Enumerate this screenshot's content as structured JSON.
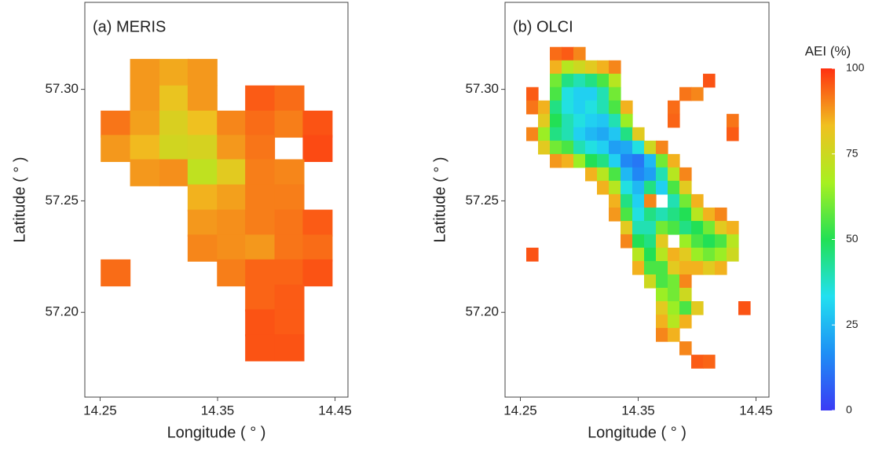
{
  "chart_data": [
    {
      "type": "heatmap",
      "title": "(a) MERIS",
      "x_label": "Longitude ( ° )",
      "y_label": "Latitude ( ° )",
      "xlim": [
        14.237,
        14.461
      ],
      "ylim": [
        57.162,
        57.339
      ],
      "xticks": [
        14.25,
        14.35,
        14.45
      ],
      "yticks": [
        {
          "value": 57.2,
          "label": "57.20"
        },
        57.25,
        {
          "value": 57.3,
          "label": "57.30"
        }
      ],
      "x": [
        14.263,
        14.288,
        14.313,
        14.337,
        14.362,
        14.386,
        14.411,
        14.435
      ],
      "y": [
        57.3077,
        57.2958,
        57.2845,
        57.2736,
        57.2627,
        57.2514,
        57.2401,
        57.2289,
        57.2178,
        57.2065,
        57.1954,
        57.1842
      ],
      "z": [
        [
          null,
          88,
          86,
          88,
          null,
          null,
          null,
          null
        ],
        [
          null,
          88,
          82,
          88,
          null,
          95,
          93,
          null
        ],
        [
          92,
          87,
          78,
          83,
          90,
          93,
          91,
          96
        ],
        [
          88,
          84,
          76,
          77,
          88,
          92,
          null,
          97
        ],
        [
          null,
          88,
          89,
          72,
          80,
          91,
          90,
          null
        ],
        [
          null,
          null,
          null,
          85,
          87,
          91,
          91,
          null
        ],
        [
          null,
          null,
          null,
          88,
          89,
          91,
          92,
          95
        ],
        [
          null,
          null,
          null,
          90,
          89,
          88,
          92,
          93
        ],
        [
          93,
          null,
          null,
          null,
          91,
          94,
          94,
          96
        ],
        [
          null,
          null,
          null,
          null,
          null,
          94,
          95,
          null
        ],
        [
          null,
          null,
          null,
          null,
          null,
          96,
          95,
          null
        ],
        [
          null,
          null,
          null,
          null,
          null,
          96,
          96,
          null
        ]
      ]
    },
    {
      "type": "heatmap",
      "title": "(b) OLCI",
      "x_label": "Longitude ( ° )",
      "y_label": "Latitude ( ° )",
      "xlim": [
        14.237,
        14.461
      ],
      "ylim": [
        57.162,
        57.339
      ],
      "xticks": [
        14.25,
        14.35,
        14.45
      ],
      "yticks": [
        {
          "value": 57.2,
          "label": "57.20"
        },
        57.25,
        {
          "value": 57.3,
          "label": "57.30"
        }
      ],
      "x": [
        14.26,
        14.27,
        14.28,
        14.29,
        14.3,
        14.31,
        14.32,
        14.33,
        14.34,
        14.35,
        14.36,
        14.37,
        14.38,
        14.39,
        14.4,
        14.41,
        14.42,
        14.43,
        14.44
      ],
      "y": [
        57.316,
        57.31,
        57.304,
        57.298,
        57.292,
        57.286,
        57.28,
        57.274,
        57.268,
        57.262,
        57.256,
        57.25,
        57.244,
        57.238,
        57.232,
        57.226,
        57.22,
        57.214,
        57.208,
        57.202,
        57.196,
        57.19,
        57.184,
        57.178
      ],
      "z": [
        [
          null,
          null,
          93,
          95,
          90,
          null,
          null,
          null,
          null,
          null,
          null,
          null,
          null,
          null,
          null,
          null,
          null,
          null,
          null
        ],
        [
          null,
          null,
          85,
          70,
          75,
          80,
          85,
          90,
          null,
          null,
          null,
          null,
          null,
          null,
          null,
          null,
          null,
          null,
          null
        ],
        [
          null,
          null,
          60,
          45,
          40,
          45,
          55,
          70,
          null,
          null,
          null,
          null,
          null,
          null,
          null,
          96,
          null,
          null,
          null
        ],
        [
          95,
          null,
          55,
          35,
          30,
          30,
          40,
          60,
          null,
          null,
          null,
          null,
          null,
          92,
          90,
          null,
          null,
          null,
          null
        ],
        [
          92,
          85,
          45,
          35,
          30,
          35,
          40,
          55,
          85,
          null,
          null,
          null,
          93,
          null,
          null,
          null,
          null,
          null,
          null
        ],
        [
          null,
          80,
          50,
          40,
          35,
          30,
          28,
          40,
          65,
          null,
          null,
          null,
          94,
          null,
          null,
          null,
          null,
          92,
          null
        ],
        [
          90,
          65,
          45,
          40,
          30,
          25,
          22,
          28,
          45,
          80,
          null,
          null,
          null,
          null,
          null,
          null,
          null,
          95,
          null
        ],
        [
          null,
          80,
          60,
          55,
          40,
          35,
          30,
          20,
          22,
          35,
          75,
          90,
          null,
          null,
          null,
          null,
          null,
          null,
          null
        ],
        [
          null,
          null,
          88,
          85,
          65,
          50,
          45,
          30,
          15,
          12,
          25,
          60,
          85,
          null,
          null,
          null,
          null,
          null,
          null
        ],
        [
          null,
          null,
          null,
          null,
          null,
          85,
          70,
          55,
          25,
          15,
          20,
          40,
          70,
          90,
          null,
          null,
          null,
          null,
          null
        ],
        [
          null,
          null,
          null,
          null,
          null,
          null,
          85,
          70,
          35,
          25,
          45,
          30,
          55,
          80,
          null,
          null,
          null,
          null,
          null
        ],
        [
          null,
          null,
          null,
          null,
          null,
          null,
          null,
          85,
          45,
          30,
          90,
          null,
          40,
          60,
          85,
          null,
          null,
          null,
          null
        ],
        [
          null,
          null,
          null,
          null,
          null,
          null,
          null,
          88,
          55,
          35,
          45,
          40,
          45,
          50,
          70,
          85,
          90,
          null,
          null
        ],
        [
          null,
          null,
          null,
          null,
          null,
          null,
          null,
          null,
          80,
          40,
          40,
          60,
          55,
          45,
          50,
          60,
          80,
          85,
          null
        ],
        [
          null,
          null,
          null,
          null,
          null,
          null,
          null,
          null,
          90,
          50,
          45,
          80,
          null,
          65,
          55,
          50,
          55,
          70,
          null
        ],
        [
          96,
          null,
          null,
          null,
          null,
          null,
          null,
          null,
          null,
          70,
          50,
          70,
          85,
          80,
          65,
          60,
          65,
          75,
          null
        ],
        [
          null,
          null,
          null,
          null,
          null,
          null,
          null,
          null,
          null,
          85,
          55,
          55,
          80,
          85,
          85,
          80,
          85,
          null,
          null
        ],
        [
          null,
          null,
          null,
          null,
          null,
          null,
          null,
          null,
          null,
          null,
          75,
          55,
          60,
          90,
          null,
          null,
          null,
          null,
          null
        ],
        [
          null,
          null,
          null,
          null,
          null,
          null,
          null,
          null,
          null,
          null,
          null,
          65,
          60,
          75,
          null,
          null,
          null,
          null,
          null
        ],
        [
          null,
          null,
          null,
          null,
          null,
          null,
          null,
          null,
          null,
          null,
          null,
          80,
          65,
          55,
          80,
          null,
          null,
          null,
          96
        ],
        [
          null,
          null,
          null,
          null,
          null,
          null,
          null,
          null,
          null,
          null,
          null,
          85,
          70,
          85,
          null,
          null,
          null,
          null,
          null
        ],
        [
          null,
          null,
          null,
          null,
          null,
          null,
          null,
          null,
          null,
          null,
          null,
          90,
          85,
          null,
          null,
          null,
          null,
          null,
          null
        ],
        [
          null,
          null,
          null,
          null,
          null,
          null,
          null,
          null,
          null,
          null,
          null,
          null,
          null,
          90,
          null,
          null,
          null,
          null,
          null
        ],
        [
          null,
          null,
          null,
          null,
          null,
          null,
          null,
          null,
          null,
          null,
          null,
          null,
          null,
          null,
          95,
          94,
          null,
          null,
          null
        ]
      ]
    }
  ],
  "colorbar": {
    "title": "AEI (%)",
    "zlim": [
      0,
      100
    ],
    "ticks": [
      0,
      25,
      50,
      75,
      100
    ],
    "colors": [
      "#3b3bf5",
      "#1e8ff5",
      "#22e0f0",
      "#22e055",
      "#a8f020",
      "#f0c020",
      "#ff3010"
    ]
  }
}
